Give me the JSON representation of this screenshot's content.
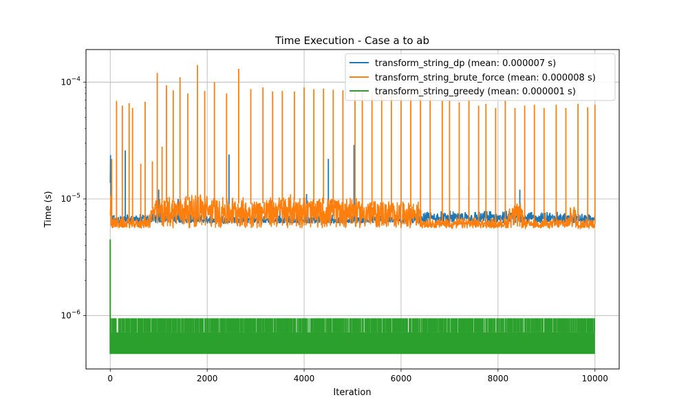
{
  "chart_data": {
    "type": "line",
    "title": "Time Execution - Case a to ab",
    "xlabel": "Iteration",
    "ylabel": "Time (s)",
    "yscale": "log",
    "xlim": [
      -500,
      10500
    ],
    "ylim": [
      3.5e-07,
      0.00019
    ],
    "x_ticks": [
      0,
      2000,
      4000,
      6000,
      8000,
      10000
    ],
    "x_tick_labels": [
      "0",
      "2000",
      "4000",
      "6000",
      "8000",
      "10000"
    ],
    "y_ticks": [
      1e-06,
      1e-05,
      0.0001
    ],
    "y_tick_labels": [
      {
        "base": "10",
        "exp": "−6"
      },
      {
        "base": "10",
        "exp": "−5"
      },
      {
        "base": "10",
        "exp": "−4"
      }
    ],
    "grid": true,
    "legend_position": "top-right",
    "series": [
      {
        "name": "transform_string_dp (mean: 0.000007 s)",
        "color": "#1f77b4",
        "profile": [
          {
            "x": 0,
            "y": 2.8e-05
          },
          {
            "x": 20,
            "y": 6.5e-06
          },
          {
            "x": 800,
            "y": 6.6e-06
          },
          {
            "x": 900,
            "y": 7e-06
          },
          {
            "x": 1500,
            "y": 7.1e-06
          },
          {
            "x": 1600,
            "y": 6.5e-06
          },
          {
            "x": 6400,
            "y": 6.5e-06
          },
          {
            "x": 6500,
            "y": 6.9e-06
          },
          {
            "x": 8300,
            "y": 7e-06
          },
          {
            "x": 9500,
            "y": 6.8e-06
          },
          {
            "x": 10000,
            "y": 6.5e-06
          }
        ],
        "band_low": 6.2e-06,
        "spikes": [
          {
            "x": 0,
            "y": 2.8e-05
          },
          {
            "x": 310,
            "y": 2.6e-05
          },
          {
            "x": 1000,
            "y": 1.2e-05
          },
          {
            "x": 1400,
            "y": 1e-05
          },
          {
            "x": 2450,
            "y": 2.4e-05
          },
          {
            "x": 3500,
            "y": 9e-06
          },
          {
            "x": 4050,
            "y": 1.1e-05
          },
          {
            "x": 4500,
            "y": 2.2e-05
          },
          {
            "x": 5030,
            "y": 2.9e-05
          },
          {
            "x": 7400,
            "y": 1.3e-05
          },
          {
            "x": 8450,
            "y": 1.2e-05
          }
        ]
      },
      {
        "name": "transform_string_brute_force (mean: 0.000008 s)",
        "color": "#ff7f0e",
        "profile": [
          {
            "x": 0,
            "y": 1.6e-05
          },
          {
            "x": 30,
            "y": 6.2e-06
          },
          {
            "x": 780,
            "y": 6.2e-06
          },
          {
            "x": 900,
            "y": 9e-06
          },
          {
            "x": 1800,
            "y": 1e-05
          },
          {
            "x": 2200,
            "y": 9.3e-06
          },
          {
            "x": 3000,
            "y": 9e-06
          },
          {
            "x": 3800,
            "y": 9.8e-06
          },
          {
            "x": 4200,
            "y": 9e-06
          },
          {
            "x": 5000,
            "y": 9.5e-06
          },
          {
            "x": 5300,
            "y": 8.7e-06
          },
          {
            "x": 6400,
            "y": 8.5e-06
          },
          {
            "x": 6420,
            "y": 6.1e-06
          },
          {
            "x": 8200,
            "y": 6.1e-06
          },
          {
            "x": 8230,
            "y": 8.2e-06
          },
          {
            "x": 8500,
            "y": 8.2e-06
          },
          {
            "x": 8520,
            "y": 6.1e-06
          },
          {
            "x": 9450,
            "y": 6.1e-06
          },
          {
            "x": 9470,
            "y": 8.2e-06
          },
          {
            "x": 9600,
            "y": 8.2e-06
          },
          {
            "x": 9620,
            "y": 6.1e-06
          },
          {
            "x": 10000,
            "y": 6.1e-06
          }
        ],
        "band_low": 5.6e-06,
        "spikes": [
          {
            "x": 30,
            "y": 2.2e-05
          },
          {
            "x": 130,
            "y": 6.9e-05
          },
          {
            "x": 250,
            "y": 6.3e-05
          },
          {
            "x": 390,
            "y": 6.6e-05
          },
          {
            "x": 460,
            "y": 6e-05
          },
          {
            "x": 630,
            "y": 2e-05
          },
          {
            "x": 720,
            "y": 6.8e-05
          },
          {
            "x": 870,
            "y": 2.1e-05
          },
          {
            "x": 970,
            "y": 0.00012
          },
          {
            "x": 1070,
            "y": 2.8e-05
          },
          {
            "x": 1160,
            "y": 9.4e-05
          },
          {
            "x": 1300,
            "y": 8.5e-05
          },
          {
            "x": 1440,
            "y": 0.00011
          },
          {
            "x": 1600,
            "y": 8e-05
          },
          {
            "x": 1800,
            "y": 0.00014
          },
          {
            "x": 1950,
            "y": 8.4e-05
          },
          {
            "x": 2150,
            "y": 0.0001
          },
          {
            "x": 2400,
            "y": 8e-05
          },
          {
            "x": 2650,
            "y": 0.00013
          },
          {
            "x": 2900,
            "y": 8.7e-05
          },
          {
            "x": 3150,
            "y": 9e-05
          },
          {
            "x": 3350,
            "y": 8.3e-05
          },
          {
            "x": 3550,
            "y": 8.4e-05
          },
          {
            "x": 3800,
            "y": 8.3e-05
          },
          {
            "x": 4000,
            "y": 9e-05
          },
          {
            "x": 4200,
            "y": 8.7e-05
          },
          {
            "x": 4400,
            "y": 8.8e-05
          },
          {
            "x": 4600,
            "y": 8.6e-05
          },
          {
            "x": 4800,
            "y": 8.5e-05
          },
          {
            "x": 5050,
            "y": 8.6e-05
          },
          {
            "x": 5200,
            "y": 8.4e-05
          },
          {
            "x": 5400,
            "y": 8.2e-05
          },
          {
            "x": 5600,
            "y": 8.3e-05
          },
          {
            "x": 5800,
            "y": 8e-05
          },
          {
            "x": 6000,
            "y": 8.6e-05
          },
          {
            "x": 6200,
            "y": 8.1e-05
          },
          {
            "x": 6400,
            "y": 9e-05
          },
          {
            "x": 6600,
            "y": 8e-05
          },
          {
            "x": 6850,
            "y": 7e-05
          },
          {
            "x": 7000,
            "y": 7.2e-05
          },
          {
            "x": 7200,
            "y": 6.7e-05
          },
          {
            "x": 7400,
            "y": 7.1e-05
          },
          {
            "x": 7600,
            "y": 6.3e-05
          },
          {
            "x": 7750,
            "y": 6.5e-05
          },
          {
            "x": 7950,
            "y": 6e-05
          },
          {
            "x": 8150,
            "y": 7e-05
          },
          {
            "x": 8350,
            "y": 6e-05
          },
          {
            "x": 8550,
            "y": 6.3e-05
          },
          {
            "x": 8750,
            "y": 6.4e-05
          },
          {
            "x": 8950,
            "y": 6e-05
          },
          {
            "x": 9200,
            "y": 6.4e-05
          },
          {
            "x": 9400,
            "y": 6e-05
          },
          {
            "x": 9650,
            "y": 6.5e-05
          },
          {
            "x": 9850,
            "y": 6.1e-05
          },
          {
            "x": 10000,
            "y": 6.4e-05
          }
        ]
      },
      {
        "name": "transform_string_greedy (mean: 0.000001 s)",
        "color": "#2ca02c",
        "start_value": 4.5e-06,
        "band_low": 4.7e-07,
        "band_high": 7.2e-07,
        "upper_level": 9.5e-07,
        "x_start": 0,
        "x_end": 10000
      }
    ]
  }
}
